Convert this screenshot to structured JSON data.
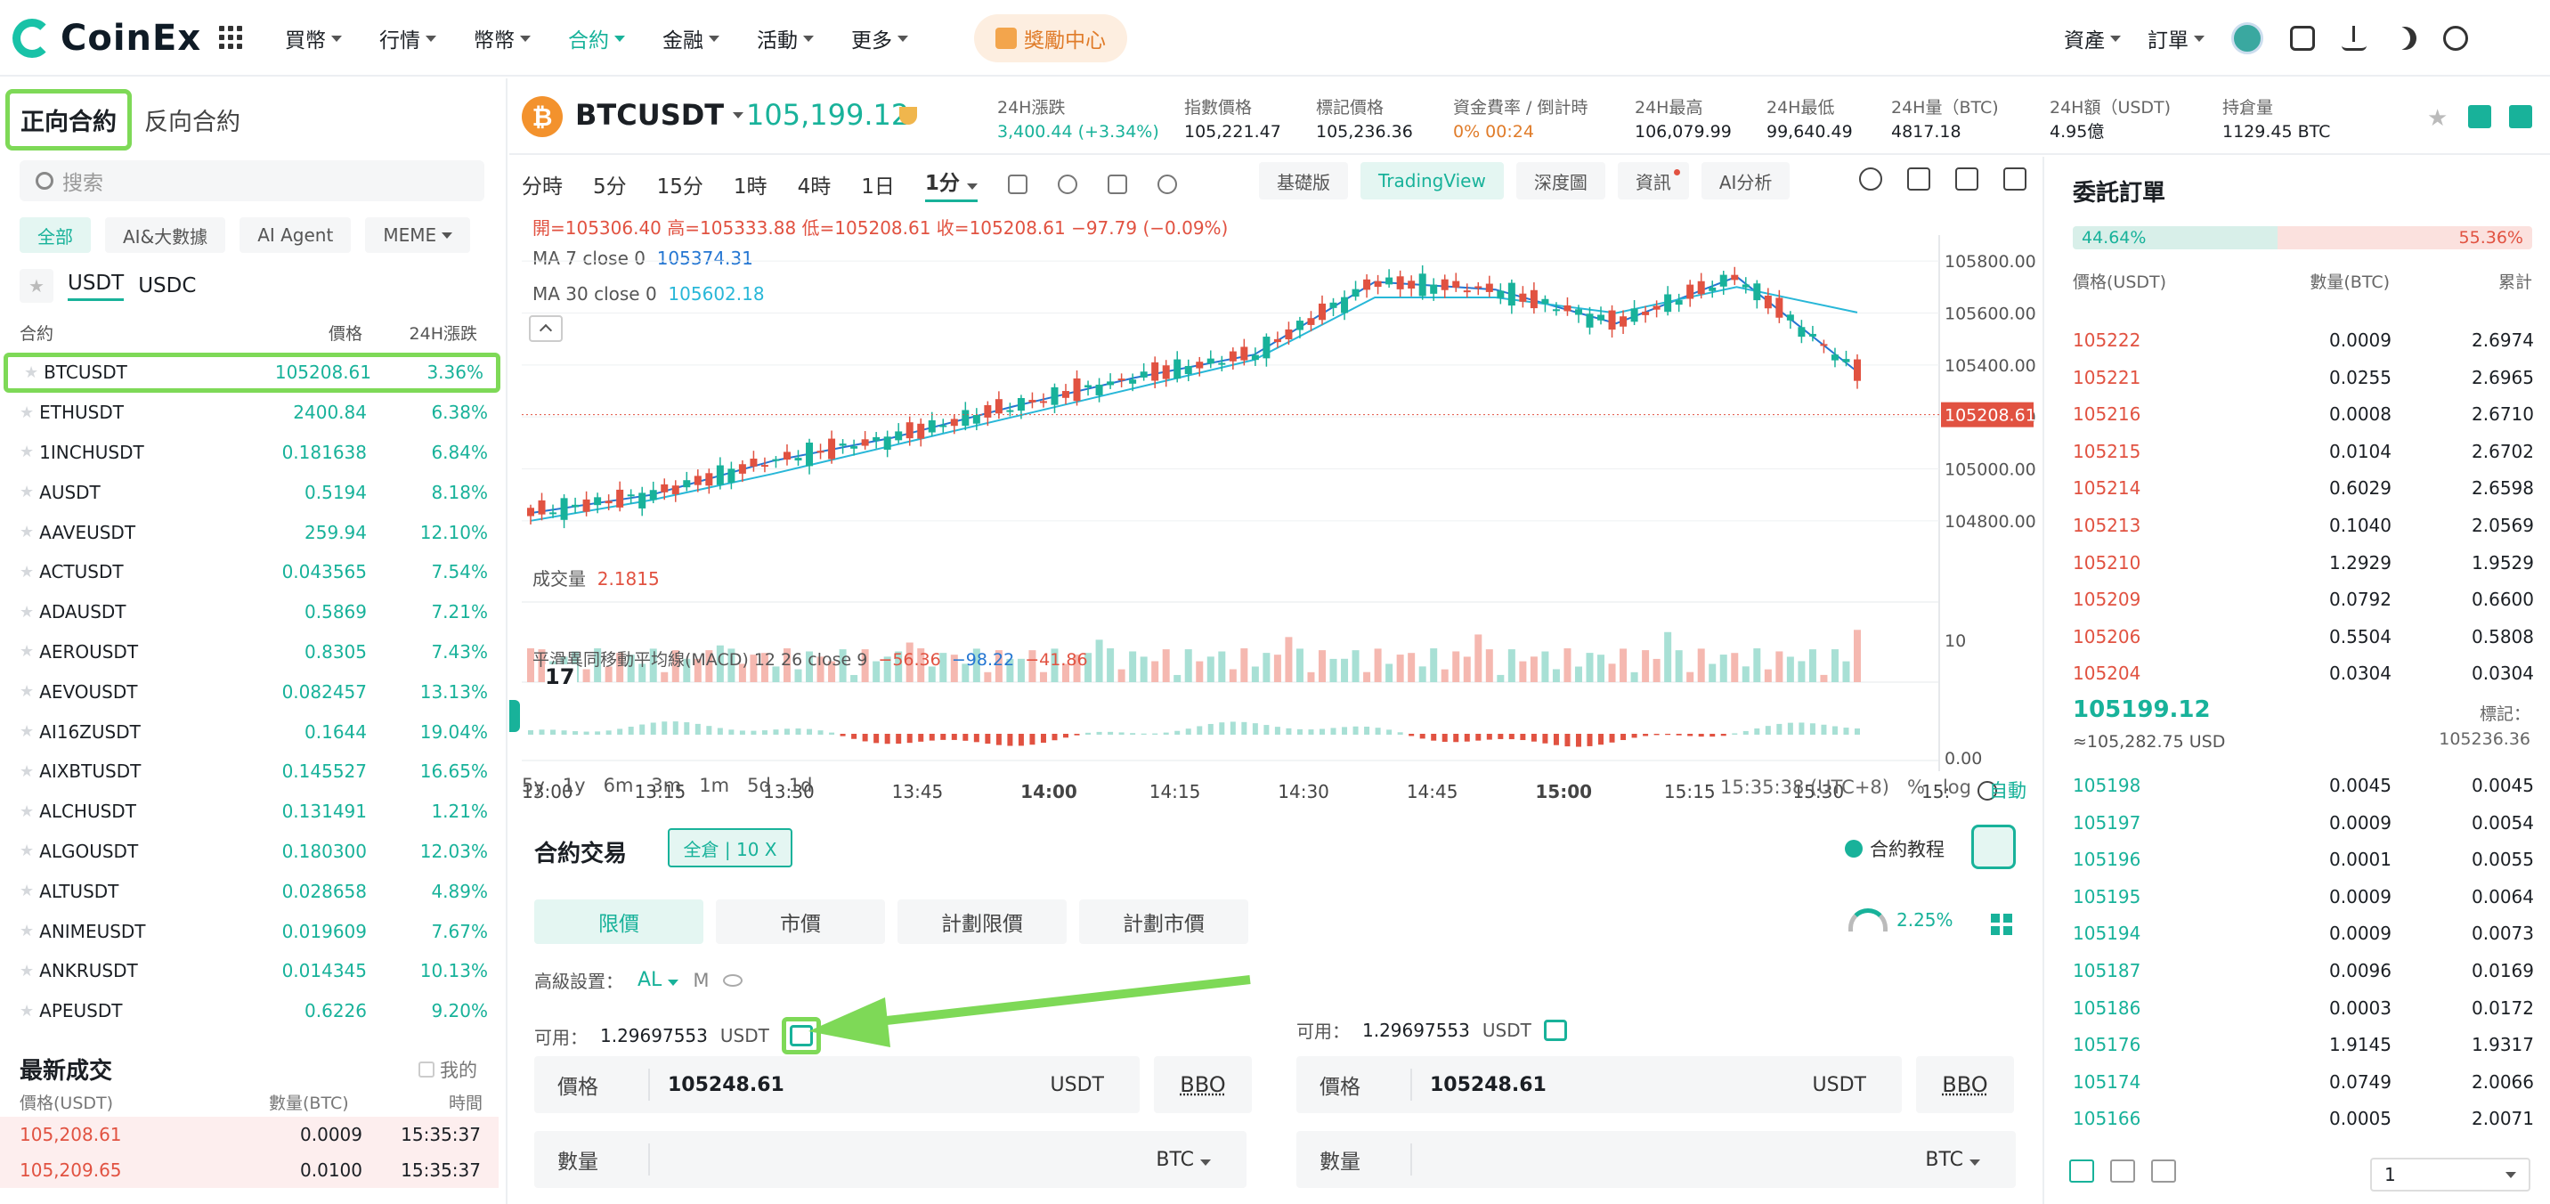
{
  "brand": {
    "name": "CoinEx"
  },
  "nav": {
    "items": [
      "買幣",
      "行情",
      "幣幣",
      "合約",
      "金融",
      "活動",
      "更多"
    ],
    "active": "合約",
    "reward": "獎勵中心",
    "assets": "資產",
    "orders": "訂單"
  },
  "left": {
    "tab_forward": "正向合約",
    "tab_reverse": "反向合約",
    "search_placeholder": "搜索",
    "chips": [
      "全部",
      "AI&大數據",
      "AI Agent",
      "MEME"
    ],
    "quote_tabs": [
      "USDT",
      "USDC"
    ],
    "col_contract": "合約",
    "col_price": "價格",
    "col_change": "24H漲跌",
    "pairs": [
      {
        "name": "BTCUSDT",
        "price": "105208.61",
        "change": "3.36%"
      },
      {
        "name": "ETHUSDT",
        "price": "2400.84",
        "change": "6.38%"
      },
      {
        "name": "1INCHUSDT",
        "price": "0.181638",
        "change": "6.84%"
      },
      {
        "name": "AUSDT",
        "price": "0.5194",
        "change": "8.18%"
      },
      {
        "name": "AAVEUSDT",
        "price": "259.94",
        "change": "12.10%"
      },
      {
        "name": "ACTUSDT",
        "price": "0.043565",
        "change": "7.54%"
      },
      {
        "name": "ADAUSDT",
        "price": "0.5869",
        "change": "7.21%"
      },
      {
        "name": "AEROUSDT",
        "price": "0.8305",
        "change": "7.43%"
      },
      {
        "name": "AEVOUSDT",
        "price": "0.082457",
        "change": "13.13%"
      },
      {
        "name": "AI16ZUSDT",
        "price": "0.1644",
        "change": "19.04%"
      },
      {
        "name": "AIXBTUSDT",
        "price": "0.145527",
        "change": "16.65%"
      },
      {
        "name": "ALCHUSDT",
        "price": "0.131491",
        "change": "1.21%"
      },
      {
        "name": "ALGOUSDT",
        "price": "0.180300",
        "change": "12.03%"
      },
      {
        "name": "ALTUSDT",
        "price": "0.028658",
        "change": "4.89%"
      },
      {
        "name": "ANIMEUSDT",
        "price": "0.019609",
        "change": "7.67%"
      },
      {
        "name": "ANKRUSDT",
        "price": "0.014345",
        "change": "10.13%"
      },
      {
        "name": "APEUSDT",
        "price": "0.6226",
        "change": "9.20%"
      }
    ],
    "trades_title": "最新成交",
    "trades_mine": "我的",
    "trades_hdr": [
      "價格(USDT)",
      "數量(BTC)",
      "時間"
    ],
    "trades": [
      {
        "price": "105,208.61",
        "qty": "0.0009",
        "time": "15:35:37"
      },
      {
        "price": "105,209.65",
        "qty": "0.0100",
        "time": "15:35:37"
      }
    ]
  },
  "ticker": {
    "symbol": "BTCUSDT",
    "price": "105,199.12",
    "stats": [
      {
        "label": "24H漲跌",
        "value": "3,400.44 (+3.34%)"
      },
      {
        "label": "指數價格",
        "value": "105,221.47"
      },
      {
        "label": "標記價格",
        "value": "105,236.36"
      },
      {
        "label": "資金費率 / 倒計時",
        "value": "0%  00:24"
      },
      {
        "label": "24H最高",
        "value": "106,079.99"
      },
      {
        "label": "24H最低",
        "value": "99,640.49"
      },
      {
        "label": "24H量（BTC)",
        "value": "4817.18"
      },
      {
        "label": "24H額（USDT)",
        "value": "4.95億"
      },
      {
        "label": "持倉量",
        "value": "1129.45 BTC"
      }
    ]
  },
  "chart": {
    "intervals": [
      "分時",
      "5分",
      "15分",
      "1時",
      "4時",
      "1日",
      "1分"
    ],
    "views": [
      "基礎版",
      "TradingView",
      "深度圖",
      "資訊",
      "AI分析"
    ],
    "ohlc": "開=105306.40  高=105333.88  低=105208.61  收=105208.61  −97.79 (−0.09%)",
    "ma7_label": "MA 7 close 0",
    "ma7_value": "105374.31",
    "ma30_label": "MA 30 close 0",
    "ma30_value": "105602.18",
    "vol_label": "成交量",
    "vol_value": "2.1815",
    "macd_label": "平滑異同移動平均線(MACD) 12 26 close 9",
    "macd_a": "−56.36",
    "macd_b": "−98.22",
    "macd_c": "−41.86",
    "last_price_tag": "105208.61",
    "ranges": [
      "5y",
      "1y",
      "6m",
      "3m",
      "1m",
      "5d",
      "1d"
    ],
    "clock": "15:35:38 (UTC+8)",
    "pct": "%",
    "log": "log",
    "auto": "自動"
  },
  "chart_data": {
    "type": "line",
    "title": "",
    "xlabel": "",
    "ylabel": "",
    "x_ticks": [
      "13:00",
      "13:15",
      "13:30",
      "13:45",
      "14:00",
      "14:15",
      "14:30",
      "14:45",
      "15:00",
      "15:15",
      "15:30",
      "15:"
    ],
    "y_ticks": [
      "105800.00",
      "105600.00",
      "105400.00",
      "105200.00",
      "105000.00",
      "104800.00"
    ],
    "ylim": [
      104700,
      105900
    ],
    "vol_ticks": [
      "10"
    ],
    "macd_ticks": [
      "0.00"
    ],
    "x": [
      "13:00",
      "13:15",
      "13:30",
      "13:45",
      "14:00",
      "14:15",
      "14:30",
      "14:45",
      "15:00",
      "15:15",
      "15:30",
      "15:35"
    ],
    "series": [
      {
        "name": "MA 7",
        "values": [
          104830,
          104900,
          105030,
          105120,
          105240,
          105350,
          105440,
          105720,
          105690,
          105560,
          105740,
          105374
        ]
      },
      {
        "name": "MA 30",
        "values": [
          104800,
          104880,
          104980,
          105090,
          105200,
          105310,
          105420,
          105660,
          105660,
          105600,
          105700,
          105602
        ]
      }
    ],
    "grid": true
  },
  "trade": {
    "title": "合約交易",
    "mode": "全倉 | 10 X",
    "tutorial": "合約教程",
    "order_tabs": [
      "限價",
      "市價",
      "計劃限價",
      "計劃市價"
    ],
    "gauge": "2.25%",
    "adv_label": "高級設置：",
    "adv_al": "AL",
    "adv_m": "M",
    "avail_label": "可用：",
    "avail_value": "1.29697553",
    "avail_unit": "USDT",
    "price_label": "價格",
    "price_value": "105248.61",
    "price_unit": "USDT",
    "bbo": "BBO",
    "qty_label": "數量",
    "qty_unit": "BTC"
  },
  "orderbook": {
    "title": "委託訂單",
    "buy_ratio": "44.64%",
    "sell_ratio": "55.36%",
    "hdr": [
      "價格(USDT)",
      "數量(BTC)",
      "累計"
    ],
    "asks": [
      {
        "p": "105222",
        "q": "0.0009",
        "t": "2.6974"
      },
      {
        "p": "105221",
        "q": "0.0255",
        "t": "2.6965"
      },
      {
        "p": "105216",
        "q": "0.0008",
        "t": "2.6710"
      },
      {
        "p": "105215",
        "q": "0.0104",
        "t": "2.6702"
      },
      {
        "p": "105214",
        "q": "0.6029",
        "t": "2.6598"
      },
      {
        "p": "105213",
        "q": "0.1040",
        "t": "2.0569"
      },
      {
        "p": "105210",
        "q": "1.2929",
        "t": "1.9529"
      },
      {
        "p": "105209",
        "q": "0.0792",
        "t": "0.6600"
      },
      {
        "p": "105206",
        "q": "0.5504",
        "t": "0.5808"
      },
      {
        "p": "105204",
        "q": "0.0304",
        "t": "0.0304"
      }
    ],
    "mid": "105199.12",
    "mid_usd": "≈105,282.75  USD",
    "mark_label": "標記：",
    "mark_value": "105236.36",
    "bids": [
      {
        "p": "105198",
        "q": "0.0045",
        "t": "0.0045"
      },
      {
        "p": "105197",
        "q": "0.0009",
        "t": "0.0054"
      },
      {
        "p": "105196",
        "q": "0.0001",
        "t": "0.0055"
      },
      {
        "p": "105195",
        "q": "0.0009",
        "t": "0.0064"
      },
      {
        "p": "105194",
        "q": "0.0009",
        "t": "0.0073"
      },
      {
        "p": "105187",
        "q": "0.0096",
        "t": "0.0169"
      },
      {
        "p": "105186",
        "q": "0.0003",
        "t": "0.0172"
      },
      {
        "p": "105176",
        "q": "1.9145",
        "t": "1.9317"
      },
      {
        "p": "105174",
        "q": "0.0749",
        "t": "2.0066"
      },
      {
        "p": "105166",
        "q": "0.0005",
        "t": "2.0071"
      }
    ],
    "depth": "1"
  },
  "colors": {
    "green": "#18b29a",
    "red": "#e15241",
    "highlight": "#7ed957"
  }
}
